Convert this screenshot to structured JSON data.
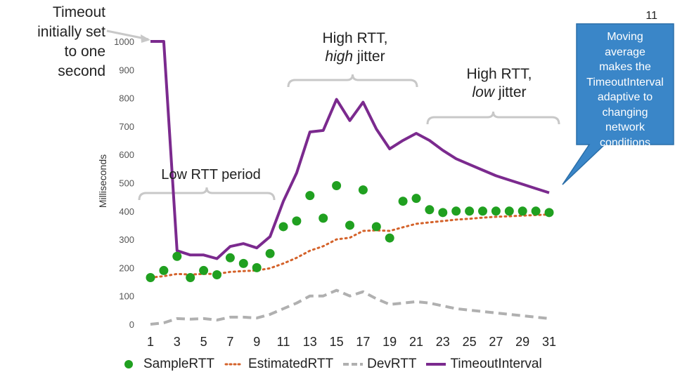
{
  "slide": {
    "number": "11"
  },
  "annotations": {
    "timeout_note": "Timeout\ninitially set\nto one\nsecond",
    "high_jitter": {
      "line1": "High RTT,",
      "emph": "high",
      "rest": " jitter"
    },
    "low_jitter": {
      "line1": "High RTT,",
      "emph": "low",
      "rest": " jitter"
    },
    "low_rtt": "Low RTT period",
    "callout": "Moving\naverage\nmakes the\nTimeoutInterval\nadaptive to\nchanging\nnetwork\nconditions"
  },
  "colors": {
    "sample": "#20a020",
    "estimated": "#d4622a",
    "dev": "#b0b0b0",
    "timeout": "#7b2a8e",
    "callout": "#3a86c8",
    "brace": "#c8c8c8"
  },
  "chart_data": {
    "type": "line",
    "ylabel": "Milliseconds",
    "xlabel": "",
    "ylim": [
      0,
      1000
    ],
    "yticks": [
      0,
      100,
      200,
      300,
      400,
      500,
      600,
      700,
      800,
      900,
      1000
    ],
    "x": [
      1,
      2,
      3,
      4,
      5,
      6,
      7,
      8,
      9,
      10,
      11,
      12,
      13,
      14,
      15,
      16,
      17,
      18,
      19,
      20,
      21,
      22,
      23,
      24,
      25,
      26,
      27,
      28,
      29,
      30,
      31
    ],
    "xticks": [
      1,
      3,
      5,
      7,
      9,
      11,
      13,
      15,
      17,
      19,
      21,
      23,
      25,
      27,
      29,
      31
    ],
    "grid": false,
    "legend": "bottom",
    "series": [
      {
        "name": "SampleRTT",
        "style": "markers",
        "values": [
          165,
          190,
          240,
          165,
          190,
          175,
          235,
          215,
          200,
          250,
          345,
          365,
          455,
          375,
          490,
          350,
          475,
          345,
          305,
          435,
          445,
          405,
          395,
          400,
          400,
          400,
          400,
          400,
          400,
          400,
          395
        ]
      },
      {
        "name": "EstimatedRTT",
        "style": "dotted",
        "values": [
          165,
          170,
          178,
          176,
          178,
          178,
          185,
          188,
          190,
          198,
          215,
          235,
          260,
          276,
          300,
          306,
          330,
          332,
          330,
          343,
          355,
          360,
          365,
          370,
          373,
          377,
          380,
          382,
          384,
          386,
          388
        ]
      },
      {
        "name": "DevRTT",
        "style": "dashed",
        "values": [
          0,
          5,
          20,
          18,
          20,
          15,
          25,
          25,
          22,
          35,
          55,
          75,
          100,
          100,
          120,
          100,
          115,
          90,
          70,
          75,
          80,
          75,
          65,
          55,
          50,
          45,
          40,
          35,
          30,
          25,
          20
        ]
      },
      {
        "name": "TimeoutInterval",
        "style": "solid",
        "values": [
          1000,
          1000,
          260,
          245,
          245,
          232,
          275,
          285,
          270,
          310,
          435,
          535,
          680,
          685,
          795,
          720,
          785,
          690,
          620,
          650,
          675,
          650,
          615,
          585,
          565,
          545,
          525,
          510,
          495,
          480,
          465
        ]
      }
    ]
  }
}
